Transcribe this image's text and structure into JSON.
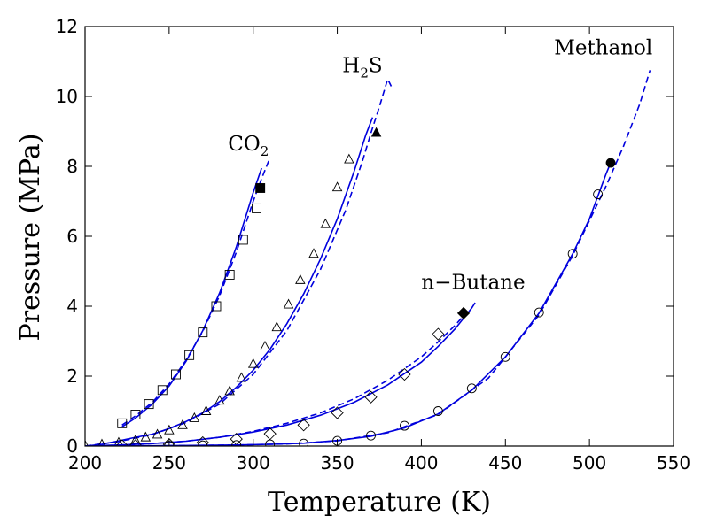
{
  "chart_data": {
    "type": "line",
    "xlabel": "Temperature (K)",
    "ylabel": "Pressure (MPa)",
    "xlim": [
      200,
      550
    ],
    "ylim": [
      0,
      12
    ],
    "xticks": [
      200,
      250,
      300,
      350,
      400,
      450,
      500,
      550
    ],
    "yticks": [
      0,
      2,
      4,
      6,
      8,
      10,
      12
    ],
    "grid": false,
    "line_color": "#0000dd",
    "marker_color": "#000000",
    "series": [
      {
        "name": "CO2",
        "label_main": "CO",
        "label_sub": "2",
        "label_at": [
          285,
          8.45
        ],
        "marker": "square",
        "solid_curve": [
          [
            222,
            0.55
          ],
          [
            230,
            0.8
          ],
          [
            240,
            1.2
          ],
          [
            250,
            1.72
          ],
          [
            260,
            2.42
          ],
          [
            270,
            3.3
          ],
          [
            280,
            4.38
          ],
          [
            290,
            5.7
          ],
          [
            300,
            7.25
          ],
          [
            305,
            7.95
          ]
        ],
        "dashed_curve": [
          [
            222,
            0.6
          ],
          [
            230,
            0.86
          ],
          [
            240,
            1.25
          ],
          [
            250,
            1.78
          ],
          [
            260,
            2.45
          ],
          [
            270,
            3.28
          ],
          [
            280,
            4.3
          ],
          [
            290,
            5.55
          ],
          [
            300,
            7.0
          ],
          [
            305,
            7.65
          ],
          [
            310,
            8.25
          ]
        ],
        "points": [
          [
            222,
            0.65
          ],
          [
            230,
            0.9
          ],
          [
            238,
            1.2
          ],
          [
            246,
            1.6
          ],
          [
            254,
            2.05
          ],
          [
            262,
            2.6
          ],
          [
            270,
            3.25
          ],
          [
            278,
            4.0
          ],
          [
            286,
            4.9
          ],
          [
            294,
            5.9
          ],
          [
            302,
            6.8
          ]
        ],
        "critical_point": [
          304.2,
          7.38
        ]
      },
      {
        "name": "H2S",
        "label_main": "H",
        "label_sub": "2",
        "label_suffix": "S",
        "label_at": [
          353,
          10.7
        ],
        "marker": "triangle",
        "solid_curve": [
          [
            200,
            0.0
          ],
          [
            210,
            0.05
          ],
          [
            220,
            0.15
          ],
          [
            230,
            0.25
          ],
          [
            240,
            0.34
          ],
          [
            250,
            0.5
          ],
          [
            260,
            0.7
          ],
          [
            270,
            0.95
          ],
          [
            280,
            1.27
          ],
          [
            290,
            1.68
          ],
          [
            300,
            2.17
          ],
          [
            310,
            2.77
          ],
          [
            320,
            3.5
          ],
          [
            330,
            4.35
          ],
          [
            340,
            5.35
          ],
          [
            350,
            6.5
          ],
          [
            360,
            7.85
          ],
          [
            367,
            8.9
          ],
          [
            371,
            9.4
          ]
        ],
        "dashed_curve": [
          [
            200,
            0.0
          ],
          [
            220,
            0.13
          ],
          [
            240,
            0.33
          ],
          [
            260,
            0.67
          ],
          [
            280,
            1.2
          ],
          [
            300,
            2.05
          ],
          [
            320,
            3.3
          ],
          [
            340,
            5.05
          ],
          [
            355,
            6.75
          ],
          [
            365,
            8.15
          ],
          [
            370,
            8.95
          ],
          [
            375,
            9.7
          ],
          [
            380,
            10.5
          ],
          [
            383,
            10.2
          ]
        ],
        "points": [
          [
            200,
            0.02
          ],
          [
            210,
            0.05
          ],
          [
            220,
            0.1
          ],
          [
            230,
            0.17
          ],
          [
            236,
            0.25
          ],
          [
            243,
            0.33
          ],
          [
            250,
            0.45
          ],
          [
            258,
            0.6
          ],
          [
            265,
            0.8
          ],
          [
            272,
            1.0
          ],
          [
            280,
            1.3
          ],
          [
            286,
            1.57
          ],
          [
            293,
            1.95
          ],
          [
            300,
            2.35
          ],
          [
            307,
            2.85
          ],
          [
            314,
            3.4
          ],
          [
            321,
            4.05
          ],
          [
            328,
            4.75
          ],
          [
            336,
            5.5
          ],
          [
            343,
            6.35
          ],
          [
            350,
            7.4
          ],
          [
            357,
            8.2
          ]
        ],
        "critical_point": [
          373.2,
          8.96
        ]
      },
      {
        "name": "n-Butane",
        "label_text": "n−Butane",
        "label_at": [
          400,
          4.5
        ],
        "marker": "diamond",
        "solid_curve": [
          [
            200,
            0.0
          ],
          [
            220,
            0.03
          ],
          [
            240,
            0.07
          ],
          [
            260,
            0.14
          ],
          [
            280,
            0.25
          ],
          [
            300,
            0.4
          ],
          [
            320,
            0.6
          ],
          [
            340,
            0.88
          ],
          [
            360,
            1.25
          ],
          [
            380,
            1.75
          ],
          [
            400,
            2.4
          ],
          [
            410,
            2.85
          ],
          [
            420,
            3.35
          ],
          [
            430,
            3.95
          ],
          [
            432,
            4.1
          ]
        ],
        "dashed_curve": [
          [
            220,
            0.02
          ],
          [
            240,
            0.07
          ],
          [
            260,
            0.14
          ],
          [
            280,
            0.25
          ],
          [
            300,
            0.42
          ],
          [
            320,
            0.65
          ],
          [
            340,
            0.95
          ],
          [
            360,
            1.35
          ],
          [
            380,
            1.88
          ],
          [
            400,
            2.55
          ],
          [
            410,
            2.98
          ],
          [
            420,
            3.45
          ],
          [
            425,
            3.72
          ]
        ],
        "points": [
          [
            222,
            0.01
          ],
          [
            230,
            0.02
          ],
          [
            250,
            0.05
          ],
          [
            270,
            0.1
          ],
          [
            290,
            0.2
          ],
          [
            310,
            0.35
          ],
          [
            330,
            0.6
          ],
          [
            350,
            0.95
          ],
          [
            370,
            1.4
          ],
          [
            390,
            2.05
          ],
          [
            410,
            3.2
          ]
        ],
        "critical_point": [
          425.1,
          3.8
        ]
      },
      {
        "name": "Methanol",
        "label_text": "Methanol",
        "label_at": [
          479,
          11.2
        ],
        "marker": "circle",
        "solid_curve": [
          [
            200,
            0.0
          ],
          [
            250,
            0.01
          ],
          [
            290,
            0.03
          ],
          [
            310,
            0.05
          ],
          [
            330,
            0.08
          ],
          [
            350,
            0.16
          ],
          [
            370,
            0.28
          ],
          [
            390,
            0.52
          ],
          [
            410,
            0.92
          ],
          [
            430,
            1.6
          ],
          [
            450,
            2.55
          ],
          [
            470,
            3.8
          ],
          [
            490,
            5.5
          ],
          [
            500,
            6.5
          ],
          [
            510,
            7.8
          ],
          [
            513,
            8.15
          ]
        ],
        "dashed_curve": [
          [
            250,
            0.01
          ],
          [
            290,
            0.03
          ],
          [
            320,
            0.06
          ],
          [
            350,
            0.15
          ],
          [
            380,
            0.38
          ],
          [
            410,
            0.9
          ],
          [
            440,
            1.95
          ],
          [
            470,
            3.75
          ],
          [
            490,
            5.45
          ],
          [
            510,
            7.45
          ],
          [
            520,
            8.55
          ],
          [
            530,
            9.8
          ],
          [
            536,
            10.75
          ]
        ],
        "points": [
          [
            250,
            0.01
          ],
          [
            270,
            0.02
          ],
          [
            290,
            0.03
          ],
          [
            310,
            0.05
          ],
          [
            330,
            0.07
          ],
          [
            350,
            0.15
          ],
          [
            370,
            0.3
          ],
          [
            390,
            0.58
          ],
          [
            410,
            1.0
          ],
          [
            430,
            1.65
          ],
          [
            450,
            2.55
          ],
          [
            470,
            3.82
          ],
          [
            490,
            5.5
          ],
          [
            505,
            7.2
          ]
        ],
        "critical_point": [
          512.6,
          8.1
        ]
      }
    ]
  }
}
